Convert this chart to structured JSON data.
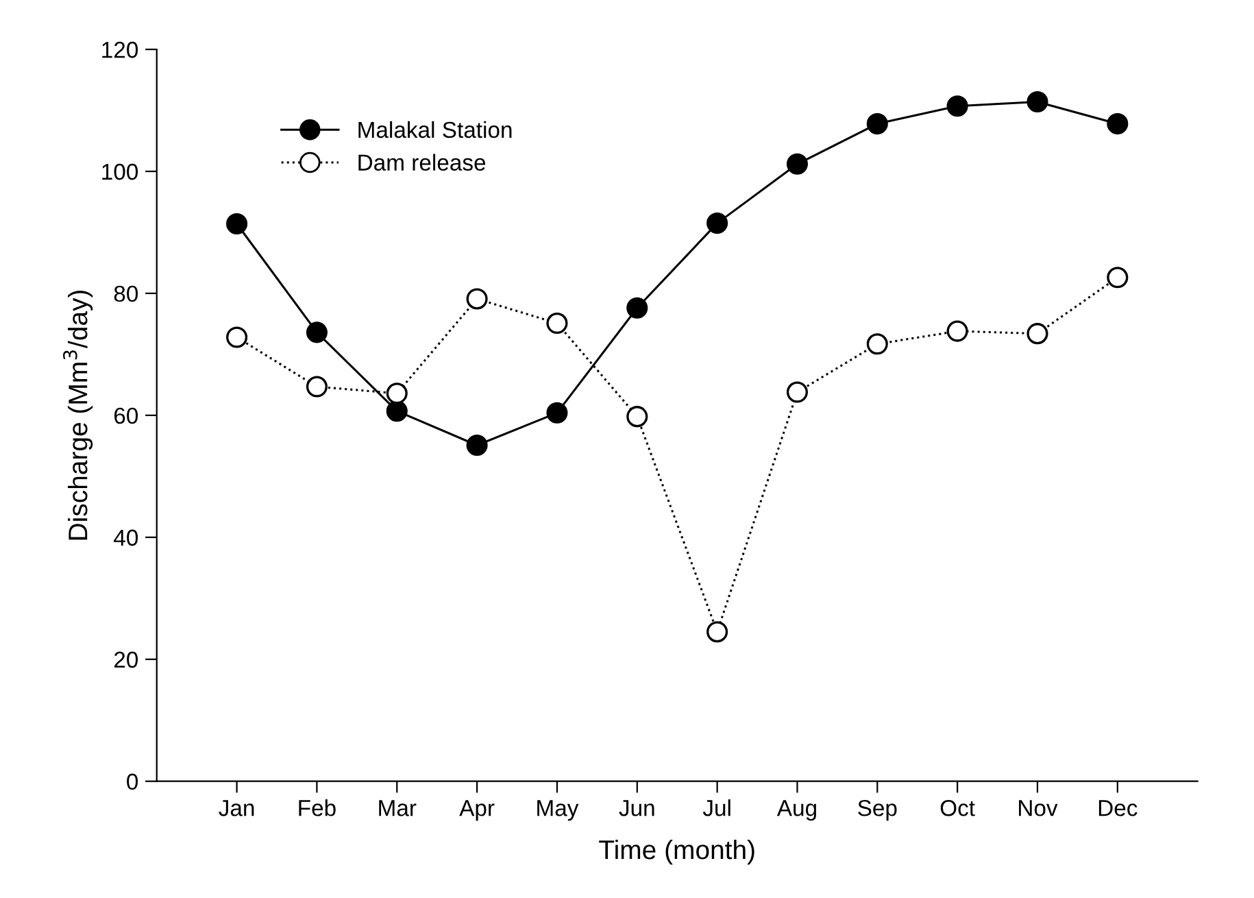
{
  "chart_data": {
    "type": "line",
    "xlabel": "Time (month)",
    "ylabel": "Discharge (Mm$^{3}$/day)",
    "categories": [
      "Jan",
      "Feb",
      "Mar",
      "Apr",
      "May",
      "Jun",
      "Jul",
      "Aug",
      "Sep",
      "Oct",
      "Nov",
      "Dec"
    ],
    "series": [
      {
        "name": "Malakal Station",
        "color": "#000000",
        "marker": "circle",
        "line_style": "solid",
        "values": [
          91.4,
          73.6,
          60.7,
          55.1,
          60.4,
          77.6,
          91.5,
          101.2,
          107.8,
          110.7,
          111.4,
          107.8
        ]
      },
      {
        "name": "Dam release",
        "color": "#000000",
        "marker": "circle",
        "line_style": "dotted",
        "values": [
          72.8,
          64.7,
          63.6,
          79.1,
          75.1,
          59.8,
          24.5,
          63.8,
          71.7,
          73.8,
          73.4,
          82.6
        ]
      }
    ],
    "ylim": [
      0,
      120
    ],
    "yticks": [
      0,
      20,
      40,
      60,
      80,
      100,
      120
    ],
    "grid": false,
    "legend": "top left"
  }
}
